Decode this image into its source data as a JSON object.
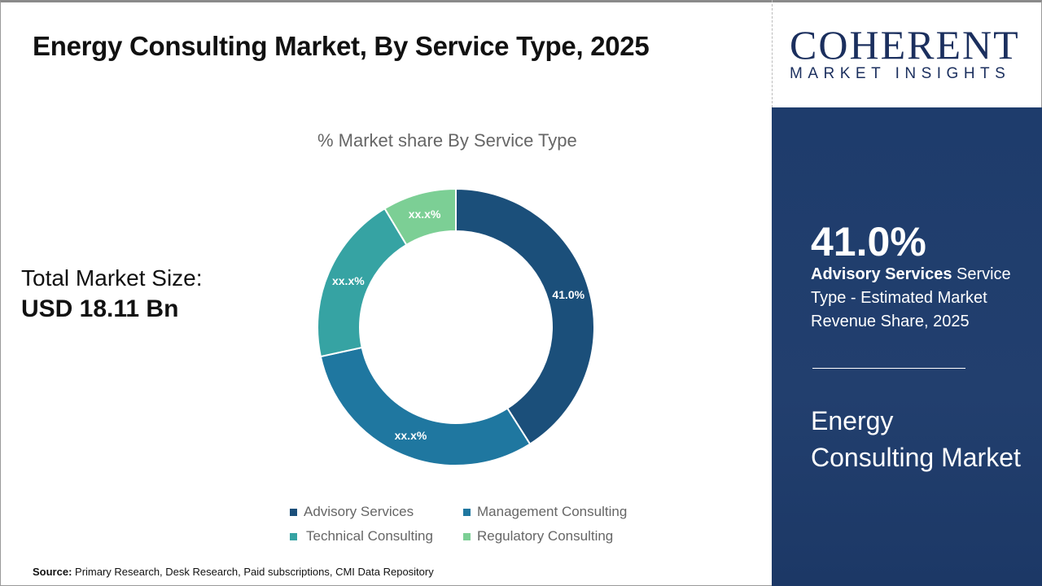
{
  "header": {
    "title": "Energy Consulting Market, By Service Type, 2025"
  },
  "logo": {
    "line1": "COHERENT",
    "line2": "MARKET INSIGHTS"
  },
  "total": {
    "label": "Total Market Size:",
    "value": "USD 18.11 Bn"
  },
  "side_panel": {
    "highlight": "41.0%",
    "segment": "Advisory Services",
    "desc": " Service Type - Estimated Market Revenue Share, 2025",
    "market": "Energy Consulting Market"
  },
  "source": {
    "label": "Source:",
    "text": " Primary Research, Desk Research, Paid subscriptions, CMI Data Repository"
  },
  "chart_data": {
    "type": "pie",
    "subtype": "donut",
    "title": "% Market share By Service Type",
    "categories": [
      "Advisory Services",
      "Management Consulting",
      "Technical Consulting",
      "Regulatory Consulting"
    ],
    "values": [
      41.0,
      30.6,
      19.8,
      8.6
    ],
    "data_labels": [
      "41.0%",
      "xx.x%",
      "xx.x%",
      "xx.x%"
    ],
    "colors": [
      "#1b4f7a",
      "#1f77a0",
      "#36a3a3",
      "#7ccf95"
    ],
    "legend_placement": "bottom"
  }
}
